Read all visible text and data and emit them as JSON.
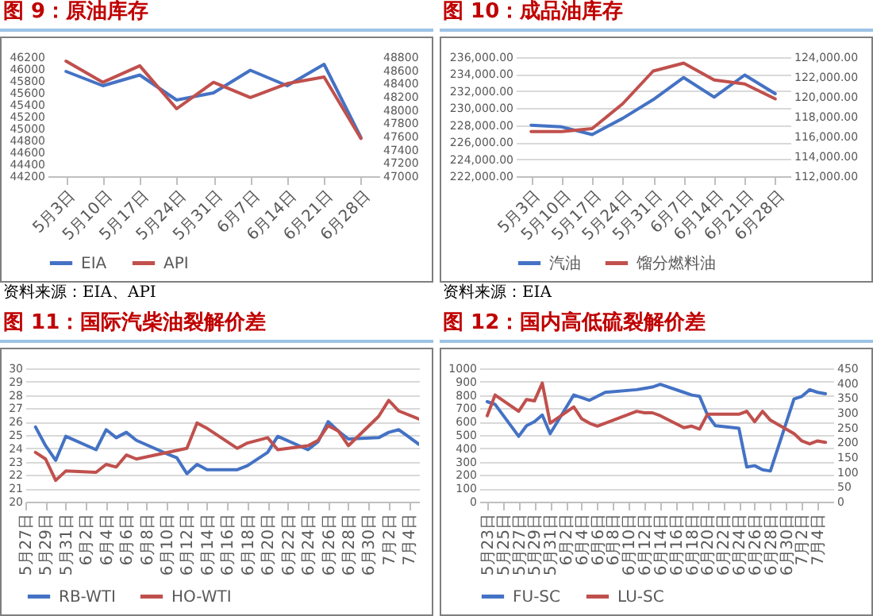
{
  "chart_data": [
    {
      "type": "line",
      "title": "图 9：原油库存",
      "categories": [
        "5月3日",
        "5月10日",
        "5月17日",
        "5月24日",
        "5月31日",
        "6月7日",
        "6月14日",
        "6月21日",
        "6月28日"
      ],
      "series": [
        {
          "name": "EIA",
          "color": "#4472c4",
          "values": [
            45960,
            45720,
            45900,
            45480,
            45600,
            45980,
            45720,
            46080,
            44850
          ]
        },
        {
          "name": "API",
          "color": "#c0504d",
          "axis": "y2",
          "values": [
            48740,
            48420,
            48670,
            48020,
            48420,
            48190,
            48400,
            48500,
            47570
          ]
        }
      ],
      "ylim": [
        44200,
        46200
      ],
      "yticks": [
        44200,
        44400,
        44600,
        44800,
        45000,
        45200,
        45400,
        45600,
        45800,
        46000,
        46200
      ],
      "y2lim": [
        47000,
        48800
      ],
      "y2ticks": [
        47000,
        47200,
        47400,
        47600,
        47800,
        48000,
        48200,
        48400,
        48600,
        48800
      ],
      "legend": "bottom",
      "grid": false,
      "annotations": [
        "资料来源：EIA、API"
      ]
    },
    {
      "type": "line",
      "title": "图 10：成品油库存",
      "categories": [
        "5月3日",
        "5月10日",
        "5月17日",
        "5月24日",
        "5月31日",
        "6月7日",
        "6月14日",
        "6月21日",
        "6月28日"
      ],
      "series": [
        {
          "name": "汽油",
          "color": "#4472c4",
          "values": [
            228000,
            227800,
            226900,
            228800,
            231000,
            233600,
            231300,
            233900,
            231700
          ]
        },
        {
          "name": "馏分燃料油",
          "color": "#c0504d",
          "axis": "y2",
          "values": [
            116500,
            116500,
            116800,
            119300,
            122600,
            123400,
            121700,
            121300,
            119800
          ]
        }
      ],
      "ylim": [
        222000,
        236000
      ],
      "yticks": [
        {
          "value": 222000,
          "label": "222,000.00"
        },
        {
          "value": 224000,
          "label": "224,000.00"
        },
        {
          "value": 226000,
          "label": "226,000.00"
        },
        {
          "value": 228000,
          "label": "228,000.00"
        },
        {
          "value": 230000,
          "label": "230,000.00"
        },
        {
          "value": 232000,
          "label": "232,000.00"
        },
        {
          "value": 234000,
          "label": "234,000.00"
        },
        {
          "value": 236000,
          "label": "236,000.00"
        }
      ],
      "y2lim": [
        112000,
        124000
      ],
      "y2ticks": [
        {
          "value": 112000,
          "label": "112,000.00"
        },
        {
          "value": 114000,
          "label": "114,000.00"
        },
        {
          "value": 116000,
          "label": "116,000.00"
        },
        {
          "value": 118000,
          "label": "118,000.00"
        },
        {
          "value": 120000,
          "label": "120,000.00"
        },
        {
          "value": 122000,
          "label": "122,000.00"
        },
        {
          "value": 124000,
          "label": "124,000.00"
        }
      ],
      "legend": "bottom",
      "grid": "y",
      "annotations": [
        "资料来源：EIA"
      ]
    },
    {
      "type": "line",
      "title": "图 11：国际汽柴油裂解价差",
      "series": [
        {
          "name": "RB-WTI",
          "color": "#4472c4",
          "x": [
            "--05-28",
            "--05-29",
            "--05-30",
            "--05-31",
            "--06-03",
            "--06-04",
            "--06-05",
            "--06-06",
            "--06-07",
            "--06-10",
            "--06-11",
            "--06-12",
            "--06-13",
            "--06-14",
            "--06-17",
            "--06-18",
            "--06-20",
            "--06-21",
            "--06-24",
            "--06-25",
            "--06-26",
            "--06-27",
            "--06-28",
            "--07-01",
            "--07-02",
            "--07-03",
            "--07-05"
          ],
          "values": [
            25.6,
            24.2,
            23.1,
            24.9,
            23.9,
            25.4,
            24.8,
            25.2,
            24.6,
            23.6,
            23.3,
            22.1,
            22.8,
            22.4,
            22.4,
            22.7,
            23.7,
            24.9,
            23.9,
            24.5,
            26.0,
            25.3,
            24.7,
            24.8,
            25.2,
            25.4,
            24.3
          ]
        },
        {
          "name": "HO-WTI",
          "color": "#c0504d",
          "x": [
            "--05-28",
            "--05-29",
            "--05-30",
            "--05-31",
            "--06-03",
            "--06-04",
            "--06-05",
            "--06-06",
            "--06-07",
            "--06-12",
            "--06-13",
            "--06-14",
            "--06-17",
            "--06-18",
            "--06-20",
            "--06-21",
            "--06-24",
            "--06-25",
            "--06-26",
            "--06-27",
            "--06-28",
            "--07-01",
            "--07-02",
            "--07-03",
            "--07-05"
          ],
          "values": [
            23.7,
            23.2,
            21.6,
            22.3,
            22.2,
            22.8,
            22.6,
            23.5,
            23.2,
            24.0,
            25.9,
            25.5,
            24.0,
            24.4,
            24.8,
            23.9,
            24.2,
            24.6,
            25.7,
            25.3,
            24.2,
            26.4,
            27.6,
            26.8,
            26.2
          ]
        }
      ],
      "xlim": [
        "--05-27",
        "--07-05"
      ],
      "xticks": [
        {
          "value": "--05-27",
          "label": "5月27日"
        },
        {
          "value": "--05-29",
          "label": "5月29日"
        },
        {
          "value": "--05-31",
          "label": "5月31日"
        },
        {
          "value": "--06-02",
          "label": "6月2日"
        },
        {
          "value": "--06-04",
          "label": "6月4日"
        },
        {
          "value": "--06-06",
          "label": "6月6日"
        },
        {
          "value": "--06-08",
          "label": "6月8日"
        },
        {
          "value": "--06-10",
          "label": "6月10日"
        },
        {
          "value": "--06-12",
          "label": "6月12日"
        },
        {
          "value": "--06-14",
          "label": "6月14日"
        },
        {
          "value": "--06-16",
          "label": "6月16日"
        },
        {
          "value": "--06-18",
          "label": "6月18日"
        },
        {
          "value": "--06-20",
          "label": "6月20日"
        },
        {
          "value": "--06-22",
          "label": "6月22日"
        },
        {
          "value": "--06-24",
          "label": "6月24日"
        },
        {
          "value": "--06-26",
          "label": "6月26日"
        },
        {
          "value": "--06-28",
          "label": "6月28日"
        },
        {
          "value": "--06-30",
          "label": "6月30日"
        },
        {
          "value": "--07-02",
          "label": "7月2日"
        },
        {
          "value": "--07-04",
          "label": "7月4日"
        }
      ],
      "ylim": [
        20,
        30
      ],
      "yticks": [
        20,
        21,
        22,
        23,
        24,
        25,
        26,
        27,
        28,
        29,
        30
      ],
      "legend": "bottom",
      "grid": "y"
    },
    {
      "type": "line",
      "title": "图 12：国内高低硫裂解价差",
      "x": [
        "--05-23",
        "--05-24",
        "--05-27",
        "--05-28",
        "--05-29",
        "--05-30",
        "--05-31",
        "--06-03",
        "--06-04",
        "--06-05",
        "--06-06",
        "--06-07",
        "--06-11",
        "--06-12",
        "--06-13",
        "--06-14",
        "--06-17",
        "--06-18",
        "--06-19",
        "--06-20",
        "--06-21",
        "--06-24",
        "--06-25",
        "--06-26",
        "--06-27",
        "--06-28",
        "--07-01",
        "--07-02",
        "--07-03",
        "--07-04",
        "--07-05"
      ],
      "series": [
        {
          "name": "FU-SC",
          "color": "#4472c4",
          "values": [
            750,
            730,
            490,
            570,
            600,
            650,
            510,
            800,
            780,
            760,
            790,
            820,
            840,
            850,
            860,
            880,
            820,
            800,
            790,
            650,
            570,
            550,
            260,
            270,
            240,
            230,
            770,
            790,
            840,
            820,
            810
          ]
        },
        {
          "name": "LU-SC",
          "color": "#c0504d",
          "axis": "y2",
          "values": [
            290,
            360,
            305,
            345,
            340,
            400,
            265,
            320,
            280,
            265,
            255,
            265,
            305,
            300,
            300,
            290,
            250,
            255,
            245,
            295,
            295,
            295,
            305,
            270,
            305,
            275,
            230,
            205,
            195,
            205,
            200
          ]
        }
      ],
      "xlim": [
        "--05-22",
        "--07-06"
      ],
      "xticks": [
        {
          "value": "--05-23",
          "label": "5月23日"
        },
        {
          "value": "--05-25",
          "label": "5月25日"
        },
        {
          "value": "--05-27",
          "label": "5月27日"
        },
        {
          "value": "--05-29",
          "label": "5月29日"
        },
        {
          "value": "--05-31",
          "label": "5月31日"
        },
        {
          "value": "--06-02",
          "label": "6月2日"
        },
        {
          "value": "--06-04",
          "label": "6月4日"
        },
        {
          "value": "--06-06",
          "label": "6月6日"
        },
        {
          "value": "--06-08",
          "label": "6月8日"
        },
        {
          "value": "--06-10",
          "label": "6月10日"
        },
        {
          "value": "--06-12",
          "label": "6月12日"
        },
        {
          "value": "--06-14",
          "label": "6月14日"
        },
        {
          "value": "--06-16",
          "label": "6月16日"
        },
        {
          "value": "--06-18",
          "label": "6月18日"
        },
        {
          "value": "--06-20",
          "label": "6月20日"
        },
        {
          "value": "--06-22",
          "label": "6月22日"
        },
        {
          "value": "--06-24",
          "label": "6月24日"
        },
        {
          "value": "--06-26",
          "label": "6月26日"
        },
        {
          "value": "--06-28",
          "label": "6月28日"
        },
        {
          "value": "--06-30",
          "label": "6月30日"
        },
        {
          "value": "--07-02",
          "label": "7月2日"
        },
        {
          "value": "--07-04",
          "label": "7月4日"
        }
      ],
      "ylim": [
        0,
        1000
      ],
      "yticks": [
        0,
        100,
        200,
        300,
        400,
        500,
        600,
        700,
        800,
        900,
        1000
      ],
      "y2lim": [
        0,
        450
      ],
      "y2ticks": [
        0,
        50,
        100,
        150,
        200,
        250,
        300,
        350,
        400,
        450
      ],
      "legend": "bottom",
      "grid": "y"
    }
  ]
}
